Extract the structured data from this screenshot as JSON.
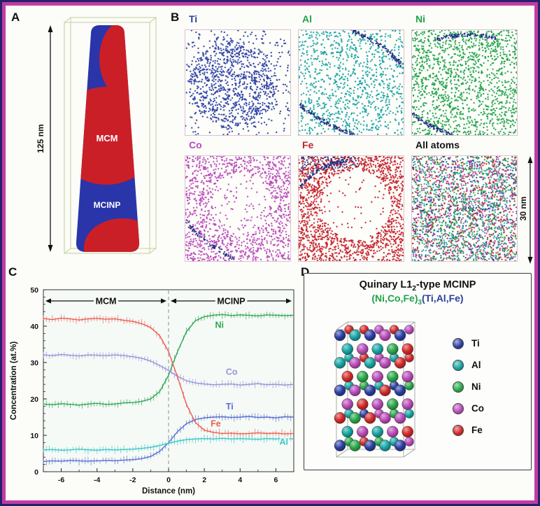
{
  "colors": {
    "frame_outer": "#22226a",
    "frame_magenta": "#c13ba5",
    "background": "#fcfcf9",
    "ti": "#2c3fa4",
    "al": "#17a4a4",
    "ni": "#1fa348",
    "co": "#ba4aba",
    "fe": "#c4232c",
    "navy_interface": "#1b2a80",
    "needle_blue": "#2a35aa",
    "needle_red": "#cb1f27",
    "wireframe": "#c2cf96",
    "plot_bg": "#f5faf7"
  },
  "panel_a": {
    "label": "A",
    "scale_label": "125 nm",
    "region_mcm": "MCM",
    "region_mcinp": "MCINP"
  },
  "panel_b": {
    "label": "B",
    "scale_label": "30 nm",
    "maps": [
      {
        "element": "Ti",
        "color": "#2c3fa4",
        "label_color": "#2c3fa4"
      },
      {
        "element": "Al",
        "color": "#17a4a4",
        "label_color": "#1fa348"
      },
      {
        "element": "Ni",
        "color": "#1fa348",
        "label_color": "#1fa348"
      },
      {
        "element": "Co",
        "color": "#ba4aba",
        "label_color": "#ba4aba"
      },
      {
        "element": "Fe",
        "color": "#c4232c",
        "label_color": "#c4232c"
      },
      {
        "element": "All atoms",
        "color": "mixed",
        "label_color": "#151515"
      }
    ]
  },
  "panel_c": {
    "label": "C"
  },
  "chart_data": {
    "type": "line",
    "title": "",
    "xlabel": "Distance (nm)",
    "ylabel": "Concentration (at.%)",
    "xlim": [
      -7,
      7
    ],
    "ylim": [
      0,
      50
    ],
    "xticks": [
      -6,
      -4,
      -2,
      0,
      2,
      4,
      6
    ],
    "yticks": [
      0,
      10,
      20,
      30,
      40,
      50
    ],
    "grid": false,
    "region_labels": [
      {
        "text": "MCM",
        "from": -7,
        "to": 0
      },
      {
        "text": "MCINP",
        "from": 0,
        "to": 7
      }
    ],
    "x": [
      -7,
      -6.5,
      -6,
      -5.5,
      -5,
      -4.5,
      -4,
      -3.5,
      -3,
      -2.5,
      -2,
      -1.5,
      -1,
      -0.5,
      0,
      0.5,
      1,
      1.5,
      2,
      2.5,
      3,
      3.5,
      4,
      4.5,
      5,
      5.5,
      6,
      6.5,
      7
    ],
    "series": [
      {
        "name": "Ni",
        "color": "#2fa652",
        "values": [
          18.6,
          18.4,
          18.7,
          18.5,
          18.3,
          18.6,
          18.8,
          18.5,
          18.6,
          18.9,
          19.0,
          19.3,
          20.0,
          22.0,
          26.5,
          33.0,
          38.5,
          41.5,
          42.6,
          43.0,
          43.2,
          42.9,
          43.1,
          43.0,
          42.8,
          43.1,
          43.0,
          42.9,
          43.0
        ],
        "label_pos": [
          2.6,
          39.5
        ]
      },
      {
        "name": "Co",
        "color": "#9b90d8",
        "values": [
          32.1,
          31.9,
          32.2,
          32.0,
          31.8,
          32.1,
          32.0,
          31.9,
          32.1,
          31.9,
          31.6,
          31.2,
          30.4,
          29.2,
          27.8,
          26.2,
          25.0,
          24.4,
          24.1,
          23.9,
          24.0,
          24.1,
          23.8,
          24.0,
          24.2,
          23.9,
          24.0,
          23.8,
          24.0
        ],
        "label_pos": [
          3.2,
          26.6
        ]
      },
      {
        "name": "Ti",
        "color": "#5b6ed0",
        "values": [
          2.8,
          3.0,
          2.9,
          3.1,
          3.0,
          2.9,
          3.0,
          3.1,
          3.0,
          3.2,
          3.3,
          3.6,
          4.2,
          5.6,
          8.0,
          11.0,
          13.2,
          14.3,
          14.8,
          15.0,
          15.1,
          14.9,
          15.0,
          15.2,
          14.9,
          15.0,
          14.8,
          15.1,
          15.0
        ],
        "label_pos": [
          3.2,
          17.1
        ]
      },
      {
        "name": "Fe",
        "color": "#ea5f52",
        "values": [
          42.1,
          41.8,
          42.2,
          42.0,
          41.7,
          42.0,
          42.1,
          41.9,
          42.0,
          41.6,
          41.3,
          40.7,
          39.6,
          37.4,
          33.0,
          26.0,
          18.5,
          13.5,
          11.4,
          10.8,
          10.5,
          10.6,
          10.4,
          10.5,
          10.7,
          10.5,
          10.6,
          10.4,
          10.5
        ],
        "label_pos": [
          2.35,
          12.4
        ]
      },
      {
        "name": "Al",
        "color": "#3cc6c6",
        "values": [
          6.0,
          6.1,
          5.9,
          6.0,
          6.2,
          6.0,
          5.9,
          6.1,
          6.0,
          6.1,
          6.2,
          6.4,
          6.7,
          7.2,
          7.8,
          8.4,
          8.8,
          9.0,
          9.1,
          9.0,
          9.2,
          9.0,
          9.1,
          9.0,
          8.9,
          9.1,
          9.0,
          9.2,
          9.0
        ],
        "label_pos": [
          6.2,
          7.4
        ]
      }
    ]
  },
  "panel_d": {
    "label": "D",
    "title_pre": "Quinary L1",
    "title_sub": "2",
    "title_post": "-type MCINP",
    "formula_a": "(Ni,Co,Fe)",
    "formula_sub": "3",
    "formula_b": "(Ti,Al,Fe)",
    "legend": [
      {
        "element": "Ti",
        "color": "#2c3fa4"
      },
      {
        "element": "Al",
        "color": "#17a4a4"
      },
      {
        "element": "Ni",
        "color": "#2aa84a"
      },
      {
        "element": "Co",
        "color": "#ba4aba"
      },
      {
        "element": "Fe",
        "color": "#d32a2a"
      }
    ]
  }
}
